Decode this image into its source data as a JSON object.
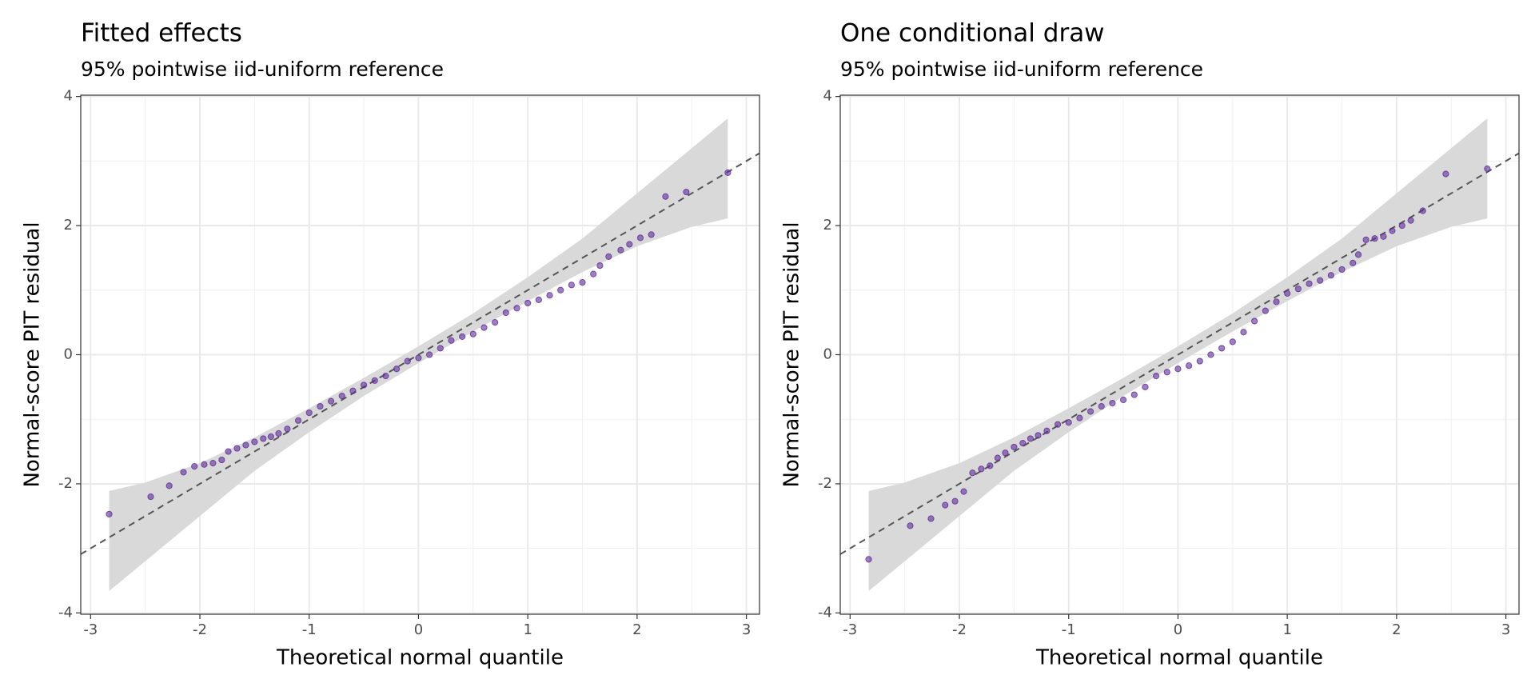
{
  "chart_data": [
    {
      "type": "scatter",
      "title": "Fitted effects",
      "subtitle": "95% pointwise iid-uniform reference",
      "x_label": "Theoretical normal quantile",
      "y_label": "Normal-score PIT residual",
      "xlim": [
        -3.09,
        3.12
      ],
      "ylim": [
        -4.02,
        4.02
      ],
      "xticks": [
        -3,
        -2,
        -1,
        0,
        1,
        2,
        3
      ],
      "yticks": [
        -4,
        -2,
        0,
        2,
        4
      ],
      "grid": true,
      "band": {
        "color": "#d9d9d9",
        "x": [
          -2.83,
          -2.5,
          -2,
          -1.5,
          -1,
          -0.5,
          0,
          0.5,
          1,
          1.5,
          2,
          2.5,
          2.83
        ],
        "lower": [
          -3.66,
          -3.2,
          -2.5,
          -1.8,
          -1.2,
          -0.64,
          -0.13,
          0.36,
          0.83,
          1.28,
          1.68,
          1.98,
          2.11
        ],
        "upper": [
          -2.11,
          -1.98,
          -1.68,
          -1.28,
          -0.83,
          -0.36,
          0.13,
          0.64,
          1.2,
          1.8,
          2.5,
          3.2,
          3.66
        ]
      },
      "reference": {
        "color": "#555555",
        "x": [
          -3.09,
          3.12
        ],
        "values": [
          -3.09,
          3.12
        ]
      },
      "series": [
        {
          "color": "#5e2c99",
          "x": [
            -2.83,
            -2.45,
            -2.28,
            -2.15,
            -2.05,
            -1.96,
            -1.88,
            -1.8,
            -1.74,
            -1.66,
            -1.58,
            -1.5,
            -1.42,
            -1.35,
            -1.28,
            -1.2,
            -1.1,
            -1.0,
            -0.9,
            -0.8,
            -0.7,
            -0.6,
            -0.5,
            -0.4,
            -0.3,
            -0.2,
            -0.1,
            0,
            0.1,
            0.2,
            0.3,
            0.4,
            0.5,
            0.6,
            0.7,
            0.8,
            0.9,
            1.0,
            1.1,
            1.2,
            1.3,
            1.4,
            1.5,
            1.6,
            1.66,
            1.74,
            1.85,
            1.93,
            2.03,
            2.13,
            2.26,
            2.45,
            2.83
          ],
          "values": [
            -2.47,
            -2.2,
            -2.03,
            -1.82,
            -1.73,
            -1.7,
            -1.68,
            -1.63,
            -1.5,
            -1.45,
            -1.4,
            -1.35,
            -1.3,
            -1.27,
            -1.22,
            -1.15,
            -1.02,
            -0.9,
            -0.8,
            -0.72,
            -0.64,
            -0.56,
            -0.47,
            -0.4,
            -0.33,
            -0.22,
            -0.1,
            -0.05,
            0.0,
            0.1,
            0.22,
            0.28,
            0.32,
            0.42,
            0.5,
            0.65,
            0.72,
            0.8,
            0.85,
            0.92,
            1.0,
            1.08,
            1.12,
            1.25,
            1.38,
            1.52,
            1.62,
            1.71,
            1.81,
            1.86,
            2.45,
            2.52,
            2.82
          ]
        }
      ]
    },
    {
      "type": "scatter",
      "title": "One conditional draw",
      "subtitle": "95% pointwise iid-uniform reference",
      "x_label": "Theoretical normal quantile",
      "y_label": "Normal-score PIT residual",
      "xlim": [
        -3.09,
        3.12
      ],
      "ylim": [
        -4.02,
        4.02
      ],
      "xticks": [
        -3,
        -2,
        -1,
        0,
        1,
        2,
        3
      ],
      "yticks": [
        -4,
        -2,
        0,
        2,
        4
      ],
      "grid": true,
      "band": {
        "color": "#d9d9d9",
        "x": [
          -2.83,
          -2.5,
          -2,
          -1.5,
          -1,
          -0.5,
          0,
          0.5,
          1,
          1.5,
          2,
          2.5,
          2.83
        ],
        "lower": [
          -3.66,
          -3.2,
          -2.5,
          -1.8,
          -1.2,
          -0.64,
          -0.13,
          0.36,
          0.83,
          1.28,
          1.68,
          1.98,
          2.11
        ],
        "upper": [
          -2.11,
          -1.98,
          -1.68,
          -1.28,
          -0.83,
          -0.36,
          0.13,
          0.64,
          1.2,
          1.8,
          2.5,
          3.2,
          3.66
        ]
      },
      "reference": {
        "color": "#555555",
        "x": [
          -3.09,
          3.12
        ],
        "values": [
          -3.09,
          3.12
        ]
      },
      "series": [
        {
          "color": "#5e2c99",
          "x": [
            -2.83,
            -2.45,
            -2.26,
            -2.13,
            -2.04,
            -1.96,
            -1.88,
            -1.8,
            -1.72,
            -1.65,
            -1.58,
            -1.5,
            -1.42,
            -1.35,
            -1.28,
            -1.2,
            -1.1,
            -1.0,
            -0.9,
            -0.8,
            -0.7,
            -0.6,
            -0.5,
            -0.4,
            -0.3,
            -0.2,
            -0.1,
            0,
            0.1,
            0.2,
            0.3,
            0.4,
            0.5,
            0.6,
            0.7,
            0.8,
            0.9,
            1.0,
            1.1,
            1.2,
            1.3,
            1.4,
            1.5,
            1.6,
            1.65,
            1.72,
            1.8,
            1.88,
            1.96,
            2.05,
            2.13,
            2.24,
            2.45,
            2.83
          ],
          "values": [
            -3.17,
            -2.65,
            -2.54,
            -2.33,
            -2.27,
            -2.12,
            -1.83,
            -1.77,
            -1.72,
            -1.6,
            -1.52,
            -1.43,
            -1.37,
            -1.3,
            -1.25,
            -1.18,
            -1.08,
            -1.05,
            -0.98,
            -0.88,
            -0.8,
            -0.75,
            -0.7,
            -0.62,
            -0.5,
            -0.33,
            -0.27,
            -0.22,
            -0.17,
            -0.1,
            0.0,
            0.1,
            0.2,
            0.35,
            0.52,
            0.68,
            0.82,
            0.95,
            1.02,
            1.1,
            1.15,
            1.23,
            1.32,
            1.42,
            1.55,
            1.78,
            1.8,
            1.83,
            1.92,
            2.0,
            2.08,
            2.23,
            2.8,
            2.88
          ]
        }
      ]
    }
  ]
}
